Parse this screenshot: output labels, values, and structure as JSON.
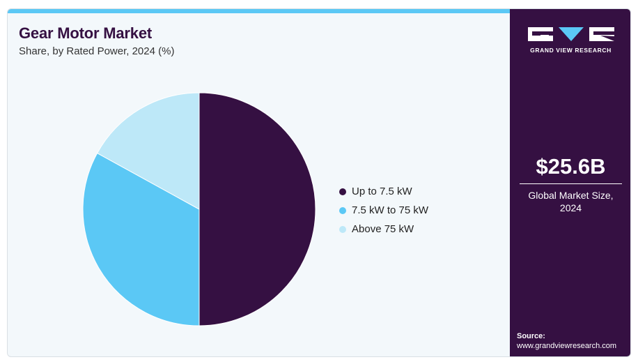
{
  "header": {
    "title": "Gear Motor Market",
    "subtitle": "Share, by Rated Power, 2024 (%)"
  },
  "chart_data": {
    "type": "pie",
    "title": "Gear Motor Market",
    "subtitle": "Share, by Rated Power, 2024 (%)",
    "categories": [
      "Up to 7.5 kW",
      "7.5 kW to 75 kW",
      "Above 75 kW"
    ],
    "values": [
      50,
      33,
      17
    ],
    "colors": [
      "#351042",
      "#5bc8f5",
      "#bde8f8"
    ],
    "start_angle": "12 o'clock, clockwise",
    "legend_position": "right"
  },
  "sidebar": {
    "logo_text": "GRAND VIEW RESEARCH",
    "market_size": "$25.6B",
    "market_label_line1": "Global Market Size,",
    "market_label_line2": "2024",
    "source_label": "Source:",
    "source_url": "www.grandviewresearch.com"
  },
  "colors": {
    "accent_bar": "#5bc8f5",
    "sidebar_bg": "#351042",
    "card_bg": "#f3f8fb"
  }
}
